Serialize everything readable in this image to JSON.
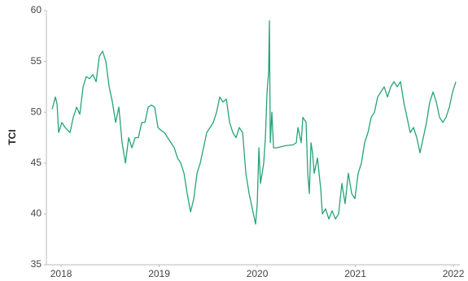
{
  "chart_data": {
    "type": "line",
    "ylabel": "TCI",
    "color": "#26a478",
    "grid": false,
    "xlim": [
      2017.85,
      2022.066
    ],
    "xticks": [
      2018,
      2019,
      2020,
      2021,
      2022
    ],
    "ylim": [
      35,
      60
    ],
    "yticks": [
      35,
      40,
      45,
      50,
      55,
      60
    ],
    "x": [
      2017.909,
      2017.942,
      2017.959,
      2017.975,
      2018.008,
      2018.041,
      2018.091,
      2018.124,
      2018.158,
      2018.191,
      2018.224,
      2018.257,
      2018.29,
      2018.324,
      2018.357,
      2018.39,
      2018.423,
      2018.456,
      2018.49,
      2018.523,
      2018.556,
      2018.589,
      2018.622,
      2018.656,
      2018.689,
      2018.722,
      2018.755,
      2018.788,
      2018.822,
      2018.855,
      2018.888,
      2018.921,
      2018.954,
      2018.988,
      2019.021,
      2019.054,
      2019.087,
      2019.12,
      2019.154,
      2019.187,
      2019.22,
      2019.253,
      2019.286,
      2019.32,
      2019.353,
      2019.386,
      2019.419,
      2019.452,
      2019.485,
      2019.519,
      2019.552,
      2019.585,
      2019.618,
      2019.651,
      2019.685,
      2019.718,
      2019.751,
      2019.784,
      2019.817,
      2019.851,
      2019.884,
      2019.917,
      2019.95,
      2019.983,
      2020.0,
      2020.017,
      2020.033,
      2020.05,
      2020.066,
      2020.083,
      2020.1,
      2020.116,
      2020.124,
      2020.133,
      2020.149,
      2020.166,
      2020.199,
      2020.282,
      2020.365,
      2020.398,
      2020.415,
      2020.448,
      2020.465,
      2020.498,
      2020.515,
      2020.531,
      2020.548,
      2020.564,
      2020.581,
      2020.614,
      2020.647,
      2020.664,
      2020.697,
      2020.73,
      2020.763,
      2020.797,
      2020.83,
      2020.863,
      2020.896,
      2020.929,
      2020.963,
      2020.996,
      2021.029,
      2021.062,
      2021.095,
      2021.129,
      2021.162,
      2021.195,
      2021.228,
      2021.261,
      2021.295,
      2021.328,
      2021.361,
      2021.394,
      2021.427,
      2021.461,
      2021.494,
      2021.527,
      2021.56,
      2021.593,
      2021.627,
      2021.66,
      2021.693,
      2021.726,
      2021.759,
      2021.793,
      2021.826,
      2021.859,
      2021.892,
      2021.925,
      2021.959,
      2021.992,
      2022.025
    ],
    "values": [
      50.3,
      51.5,
      50.8,
      48,
      49,
      48.5,
      48,
      49.5,
      50.5,
      49.8,
      52.5,
      53.5,
      53.3,
      53.7,
      53,
      55.5,
      56,
      55,
      52.5,
      51,
      49,
      50.5,
      47,
      45,
      47.5,
      46.5,
      47.5,
      47.5,
      49,
      49,
      50.5,
      50.7,
      50.5,
      48.5,
      48.2,
      48,
      47.5,
      47,
      46.5,
      45.5,
      45,
      44,
      42,
      40.2,
      41.5,
      44,
      45,
      46.5,
      48,
      48.5,
      49,
      50,
      51.5,
      51,
      51.3,
      49,
      48,
      47.5,
      48.5,
      48,
      44,
      42,
      40.5,
      39,
      41,
      46.5,
      43,
      44,
      45,
      47.5,
      52,
      54,
      59,
      47,
      50,
      46.5,
      46.5,
      46.7,
      46.8,
      47,
      48.5,
      47,
      49.5,
      49,
      44,
      42,
      47,
      46,
      44,
      45.5,
      42.5,
      40,
      40.5,
      39.5,
      40.3,
      39.5,
      40,
      43,
      41,
      44,
      42,
      41.5,
      44,
      45,
      47,
      48,
      49.5,
      50,
      51.5,
      52,
      52.5,
      51.5,
      52.5,
      53,
      52.5,
      53,
      51,
      49.5,
      48,
      48.5,
      47.5,
      46,
      47.5,
      49,
      51,
      52,
      51,
      49.5,
      49,
      49.5,
      50.5,
      52,
      53
    ]
  }
}
